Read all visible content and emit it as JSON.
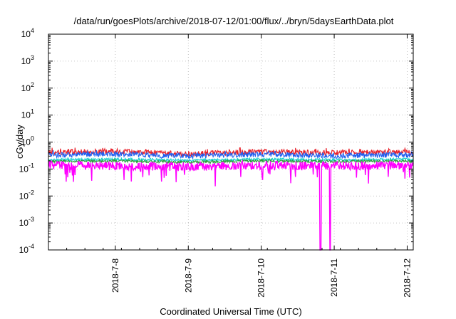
{
  "chart_data": {
    "type": "line",
    "title": "/data/run/goesPlots/archive/2018-07-12/01:00/flux/../bryn/5daysEarthData.plot",
    "xlabel": "Coordinated Universal Time (UTC)",
    "ylabel": "cGy/day",
    "yscale": "log",
    "ylim": [
      0.0001,
      10000
    ],
    "xlim": [
      "2018-07-07 02:00",
      "2018-07-12 02:00"
    ],
    "x_ticks": [
      "2018-7-8",
      "2018-7-9",
      "2018-7-10",
      "2018-7-11",
      "2018-7-12"
    ],
    "y_ticks": [
      {
        "base": "10",
        "exp": "-4"
      },
      {
        "base": "10",
        "exp": "-3"
      },
      {
        "base": "10",
        "exp": "-2"
      },
      {
        "base": "10",
        "exp": "-1"
      },
      {
        "base": "10",
        "exp": "0"
      },
      {
        "base": "10",
        "exp": "1"
      },
      {
        "base": "10",
        "exp": "2"
      },
      {
        "base": "10",
        "exp": "3"
      },
      {
        "base": "10",
        "exp": "4"
      }
    ],
    "grid": true,
    "legend": "none",
    "series": [
      {
        "color": "#e8202a",
        "values_note_time": [
          "2018-07-07 02:00",
          "2018-07-08 00:00",
          "2018-07-09 00:00",
          "2018-07-10 00:00",
          "2018-07-11 00:00",
          "2018-07-12 00:00",
          "2018-07-12 02:00"
        ],
        "values": [
          0.42,
          0.45,
          0.36,
          0.44,
          0.4,
          0.42,
          0.38
        ]
      },
      {
        "color": "#1e5ef0",
        "values_note_time": [
          "2018-07-07 02:00",
          "2018-07-08 00:00",
          "2018-07-09 00:00",
          "2018-07-10 00:00",
          "2018-07-11 00:00",
          "2018-07-12 00:00",
          "2018-07-12 02:00"
        ],
        "values": [
          0.33,
          0.35,
          0.3,
          0.35,
          0.31,
          0.34,
          0.3
        ]
      },
      {
        "color": "#18d0d0",
        "values_note_time": [
          "2018-07-07 02:00",
          "2018-07-08 00:00",
          "2018-07-09 00:00",
          "2018-07-10 00:00",
          "2018-07-11 00:00",
          "2018-07-12 00:00",
          "2018-07-12 02:00"
        ],
        "values": [
          0.22,
          0.23,
          0.21,
          0.23,
          0.22,
          0.23,
          0.21
        ]
      },
      {
        "color": "#2a9d3a",
        "values_note_time": [
          "2018-07-07 02:00",
          "2018-07-08 00:00",
          "2018-07-09 00:00",
          "2018-07-10 00:00",
          "2018-07-11 00:00",
          "2018-07-12 00:00",
          "2018-07-12 02:00"
        ],
        "values": [
          0.19,
          0.2,
          0.18,
          0.2,
          0.19,
          0.2,
          0.18
        ]
      },
      {
        "color": "#ff00ff",
        "values_note_time": [
          "2018-07-07 02:00",
          "2018-07-08 00:00",
          "2018-07-09 00:00",
          "2018-07-10 00:00",
          "2018-07-11 00:00",
          "2018-07-12 00:00",
          "2018-07-12 02:00"
        ],
        "values": [
          0.14,
          0.13,
          0.12,
          0.14,
          0.13,
          0.14,
          0.12
        ]
      }
    ],
    "dropout": {
      "time": "2018-07-10 19:30",
      "color": "#ff00ff",
      "value": 0.0001
    }
  }
}
